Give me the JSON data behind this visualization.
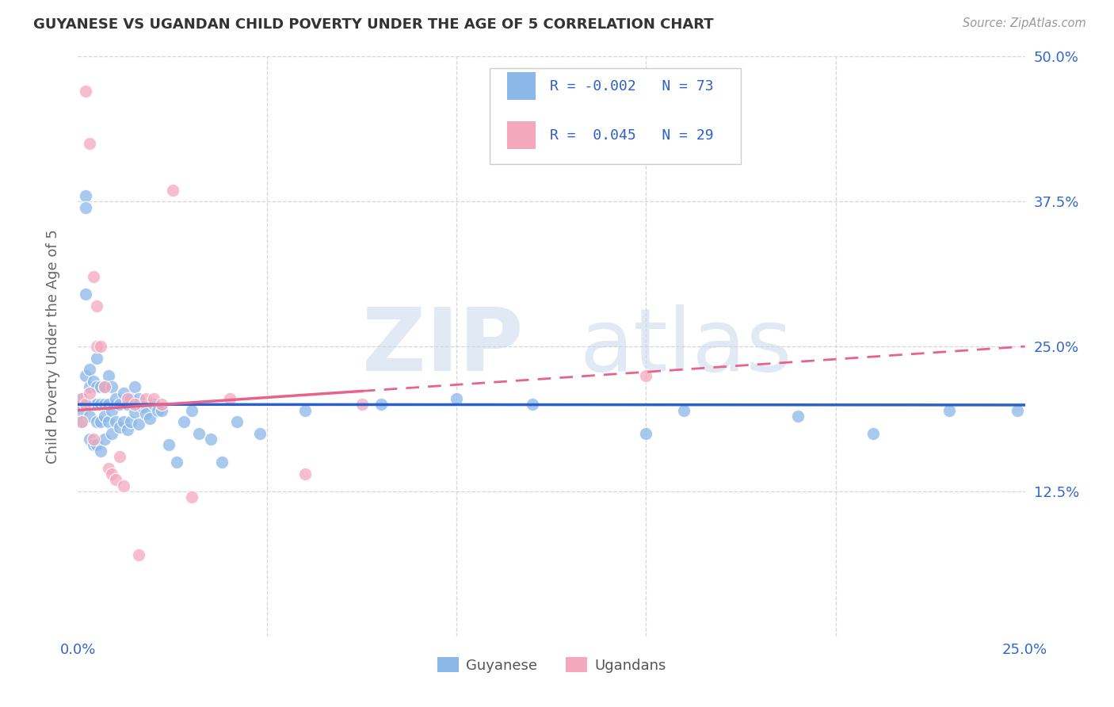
{
  "title": "GUYANESE VS UGANDAN CHILD POVERTY UNDER THE AGE OF 5 CORRELATION CHART",
  "source": "Source: ZipAtlas.com",
  "ylabel": "Child Poverty Under the Age of 5",
  "xlim": [
    0.0,
    0.25
  ],
  "ylim": [
    0.0,
    0.5
  ],
  "guyanese_color": "#8BB8E8",
  "ugandan_color": "#F4A8BC",
  "guyanese_R": -0.002,
  "guyanese_N": 73,
  "ugandan_R": 0.045,
  "ugandan_N": 29,
  "trend_blue_color": "#2B5FCB",
  "trend_pink_color": "#E8638A",
  "watermark_zip": "ZIP",
  "watermark_atlas": "atlas",
  "background_color": "#FFFFFF",
  "legend_R_color": "#2B5FCB",
  "legend_N_color": "#2B5FCB",
  "guyanese_x": [
    0.001,
    0.001,
    0.001,
    0.002,
    0.002,
    0.002,
    0.002,
    0.003,
    0.003,
    0.003,
    0.003,
    0.003,
    0.004,
    0.004,
    0.004,
    0.005,
    0.005,
    0.005,
    0.005,
    0.005,
    0.006,
    0.006,
    0.006,
    0.006,
    0.007,
    0.007,
    0.007,
    0.007,
    0.008,
    0.008,
    0.008,
    0.009,
    0.009,
    0.009,
    0.01,
    0.01,
    0.011,
    0.011,
    0.012,
    0.012,
    0.013,
    0.013,
    0.014,
    0.014,
    0.015,
    0.015,
    0.016,
    0.016,
    0.017,
    0.018,
    0.019,
    0.02,
    0.021,
    0.022,
    0.024,
    0.026,
    0.028,
    0.03,
    0.032,
    0.035,
    0.038,
    0.042,
    0.048,
    0.06,
    0.08,
    0.1,
    0.12,
    0.15,
    0.16,
    0.19,
    0.21,
    0.23,
    0.248
  ],
  "guyanese_y": [
    0.205,
    0.195,
    0.185,
    0.38,
    0.37,
    0.295,
    0.225,
    0.23,
    0.215,
    0.2,
    0.19,
    0.17,
    0.22,
    0.2,
    0.165,
    0.24,
    0.215,
    0.2,
    0.185,
    0.165,
    0.215,
    0.2,
    0.185,
    0.16,
    0.215,
    0.2,
    0.19,
    0.17,
    0.225,
    0.2,
    0.185,
    0.215,
    0.195,
    0.175,
    0.205,
    0.185,
    0.2,
    0.18,
    0.21,
    0.185,
    0.2,
    0.178,
    0.205,
    0.185,
    0.215,
    0.193,
    0.205,
    0.183,
    0.198,
    0.192,
    0.188,
    0.2,
    0.195,
    0.195,
    0.165,
    0.15,
    0.185,
    0.195,
    0.175,
    0.17,
    0.15,
    0.185,
    0.175,
    0.195,
    0.2,
    0.205,
    0.2,
    0.175,
    0.195,
    0.19,
    0.175,
    0.195,
    0.195
  ],
  "ugandan_x": [
    0.001,
    0.001,
    0.002,
    0.002,
    0.003,
    0.003,
    0.004,
    0.004,
    0.005,
    0.005,
    0.006,
    0.007,
    0.008,
    0.009,
    0.01,
    0.011,
    0.012,
    0.013,
    0.015,
    0.016,
    0.018,
    0.02,
    0.022,
    0.025,
    0.03,
    0.04,
    0.06,
    0.075,
    0.15
  ],
  "ugandan_y": [
    0.205,
    0.185,
    0.47,
    0.2,
    0.425,
    0.21,
    0.31,
    0.17,
    0.285,
    0.25,
    0.25,
    0.215,
    0.145,
    0.14,
    0.135,
    0.155,
    0.13,
    0.205,
    0.2,
    0.07,
    0.205,
    0.205,
    0.2,
    0.385,
    0.12,
    0.205,
    0.14,
    0.2,
    0.225
  ]
}
